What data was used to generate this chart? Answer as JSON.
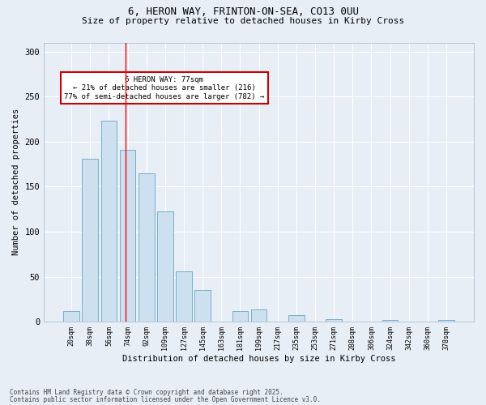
{
  "title1": "6, HERON WAY, FRINTON-ON-SEA, CO13 0UU",
  "title2": "Size of property relative to detached houses in Kirby Cross",
  "xlabel": "Distribution of detached houses by size in Kirby Cross",
  "ylabel": "Number of detached properties",
  "categories": [
    "20sqm",
    "38sqm",
    "56sqm",
    "74sqm",
    "92sqm",
    "109sqm",
    "127sqm",
    "145sqm",
    "163sqm",
    "181sqm",
    "199sqm",
    "217sqm",
    "235sqm",
    "253sqm",
    "271sqm",
    "288sqm",
    "306sqm",
    "324sqm",
    "342sqm",
    "360sqm",
    "378sqm"
  ],
  "values": [
    12,
    181,
    223,
    191,
    165,
    122,
    56,
    35,
    0,
    12,
    14,
    0,
    7,
    0,
    3,
    0,
    0,
    2,
    0,
    0,
    2
  ],
  "bar_color": "#cce0ef",
  "bar_edge_color": "#7aaec8",
  "red_line_x": 2.87,
  "annotation_text": "6 HERON WAY: 77sqm\n← 21% of detached houses are smaller (216)\n77% of semi-detached houses are larger (782) →",
  "annotation_box_color": "#ffffff",
  "annotation_box_edge_color": "#cc0000",
  "ylim": [
    0,
    310
  ],
  "yticks": [
    0,
    50,
    100,
    150,
    200,
    250,
    300
  ],
  "background_color": "#e8eef5",
  "footer1": "Contains HM Land Registry data © Crown copyright and database right 2025.",
  "footer2": "Contains public sector information licensed under the Open Government Licence v3.0."
}
